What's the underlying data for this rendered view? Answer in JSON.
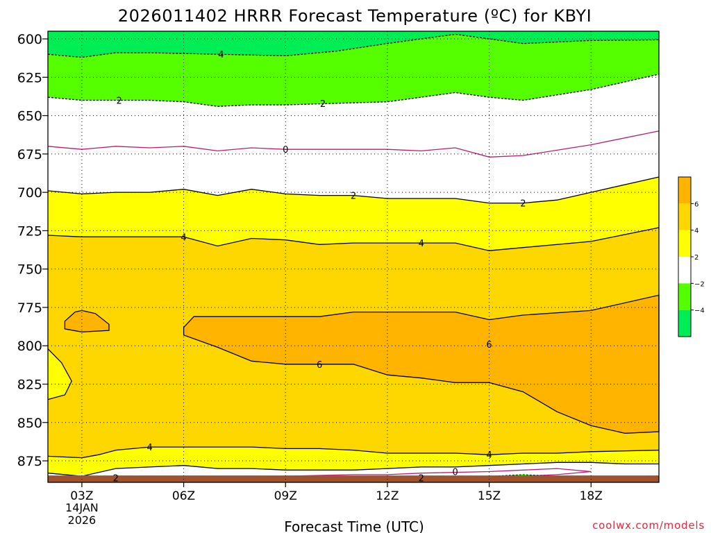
{
  "chart_data": {
    "type": "heatmap",
    "title": "2026011402 HRRR Forecast Temperature (ºC) for KBYI",
    "xlabel": "Forecast Time (UTC)",
    "ylabel": "",
    "credit": "coolwx.com/models",
    "x_ticks": [
      {
        "hour": 3,
        "label": "03Z",
        "sublabel1": "14JAN",
        "sublabel2": "2026"
      },
      {
        "hour": 6,
        "label": "06Z"
      },
      {
        "hour": 9,
        "label": "09Z"
      },
      {
        "hour": 12,
        "label": "12Z"
      },
      {
        "hour": 15,
        "label": "15Z"
      },
      {
        "hour": 18,
        "label": "18Z"
      }
    ],
    "xlim": [
      2,
      20
    ],
    "y_ticks": [
      600,
      625,
      650,
      675,
      700,
      725,
      750,
      775,
      800,
      825,
      850,
      875
    ],
    "ylim": [
      595,
      889
    ],
    "grid": true,
    "colorbar": {
      "bins": [
        {
          "min": 6,
          "max": 8,
          "color": "#ffb400"
        },
        {
          "min": 4,
          "max": 6,
          "color": "#ffd700"
        },
        {
          "min": 2,
          "max": 4,
          "color": "#ffff00"
        },
        {
          "min": -2,
          "max": 2,
          "color": "#ffffff"
        },
        {
          "min": -4,
          "max": -2,
          "color": "#55ff00"
        },
        {
          "min": -6,
          "max": -4,
          "color": "#00ee55"
        }
      ],
      "labels": [
        "6",
        "4",
        "2",
        "−2",
        "−4"
      ]
    },
    "terrain_color": "#a0522d",
    "band_boundaries": [
      {
        "name": "top_green",
        "pts": [
          [
            2,
            595
          ],
          [
            20,
            595
          ],
          [
            20,
            600.6
          ],
          [
            18,
            601
          ],
          [
            16,
            603
          ],
          [
            14,
            597
          ],
          [
            12,
            603
          ],
          [
            10.5,
            608
          ],
          [
            9,
            611
          ],
          [
            7,
            610
          ],
          [
            5,
            609
          ],
          [
            4,
            609
          ],
          [
            3,
            612
          ],
          [
            2,
            610
          ]
        ]
      },
      {
        "name": "m4",
        "pts": [
          [
            2,
            610
          ],
          [
            3,
            612
          ],
          [
            4,
            609
          ],
          [
            5,
            609
          ],
          [
            7,
            610
          ],
          [
            9,
            611
          ],
          [
            10.5,
            608
          ],
          [
            12,
            603
          ],
          [
            14,
            597
          ],
          [
            16,
            603
          ],
          [
            18,
            601
          ],
          [
            20,
            600.6
          ]
        ]
      },
      {
        "name": "m2",
        "pts": [
          [
            2,
            638
          ],
          [
            3,
            640
          ],
          [
            4,
            640
          ],
          [
            5,
            640
          ],
          [
            6,
            641
          ],
          [
            7,
            644
          ],
          [
            8,
            643
          ],
          [
            9,
            643
          ],
          [
            10.5,
            642
          ],
          [
            12,
            641
          ],
          [
            14,
            635
          ],
          [
            15,
            638
          ],
          [
            16,
            640
          ],
          [
            18,
            633
          ],
          [
            20,
            623
          ]
        ]
      },
      {
        "name": "z0",
        "pts": [
          [
            2,
            670
          ],
          [
            3,
            672
          ],
          [
            4,
            670
          ],
          [
            5,
            671
          ],
          [
            6,
            670
          ],
          [
            7,
            673
          ],
          [
            8,
            671
          ],
          [
            9,
            672
          ],
          [
            10,
            672
          ],
          [
            11,
            672
          ],
          [
            12,
            672
          ],
          [
            13,
            673
          ],
          [
            14,
            671
          ],
          [
            15,
            677
          ],
          [
            16,
            676
          ],
          [
            18,
            669
          ],
          [
            20,
            660
          ]
        ]
      },
      {
        "name": "p2",
        "pts": [
          [
            2,
            699
          ],
          [
            3,
            701
          ],
          [
            4,
            700
          ],
          [
            5,
            700
          ],
          [
            6,
            698
          ],
          [
            7,
            702
          ],
          [
            8,
            698
          ],
          [
            9,
            701
          ],
          [
            10,
            702
          ],
          [
            11,
            702
          ],
          [
            12,
            704
          ],
          [
            13,
            704
          ],
          [
            14,
            704
          ],
          [
            15,
            707
          ],
          [
            16,
            707
          ],
          [
            17,
            705
          ],
          [
            18,
            700
          ],
          [
            20,
            690
          ]
        ]
      },
      {
        "name": "p4",
        "pts": [
          [
            2,
            728
          ],
          [
            3,
            729
          ],
          [
            4,
            729
          ],
          [
            5,
            729
          ],
          [
            6,
            729
          ],
          [
            7,
            735
          ],
          [
            8,
            730
          ],
          [
            9,
            731
          ],
          [
            10,
            734
          ],
          [
            11,
            733
          ],
          [
            12,
            733
          ],
          [
            13,
            733
          ],
          [
            14,
            733
          ],
          [
            15,
            738
          ],
          [
            16,
            736
          ],
          [
            18,
            732
          ],
          [
            20,
            723
          ]
        ]
      },
      {
        "name": "p4_low",
        "pts": [
          [
            2,
            872
          ],
          [
            3,
            873
          ],
          [
            3.5,
            871
          ],
          [
            4,
            868
          ],
          [
            5,
            866
          ],
          [
            6,
            866
          ],
          [
            7,
            866
          ],
          [
            8,
            866
          ],
          [
            9,
            867
          ],
          [
            10,
            867
          ],
          [
            11,
            868
          ],
          [
            12,
            870
          ],
          [
            13,
            870
          ],
          [
            14,
            870
          ],
          [
            15,
            871
          ],
          [
            16,
            870
          ],
          [
            17,
            870
          ],
          [
            18,
            869
          ],
          [
            20,
            868
          ]
        ]
      },
      {
        "name": "p2_low",
        "pts": [
          [
            2,
            883
          ],
          [
            3,
            885
          ],
          [
            4,
            880
          ],
          [
            5,
            879
          ],
          [
            6,
            878
          ],
          [
            7,
            880
          ],
          [
            8,
            880
          ],
          [
            9,
            881
          ],
          [
            10,
            881
          ],
          [
            11,
            881
          ],
          [
            12,
            880
          ],
          [
            13,
            879
          ],
          [
            14,
            879
          ],
          [
            15,
            878
          ],
          [
            16,
            877
          ],
          [
            17,
            876
          ],
          [
            18,
            876
          ],
          [
            19,
            877
          ],
          [
            20,
            877
          ]
        ]
      }
    ],
    "warm_core": [
      [
        6,
        788
      ],
      [
        6.3,
        781
      ],
      [
        8,
        781
      ],
      [
        10,
        781
      ],
      [
        11,
        778
      ],
      [
        12,
        778
      ],
      [
        14,
        778
      ],
      [
        15,
        783
      ],
      [
        16,
        780
      ],
      [
        18,
        777
      ],
      [
        20,
        767
      ],
      [
        20,
        856
      ],
      [
        19,
        857
      ],
      [
        18,
        852
      ],
      [
        17,
        843
      ],
      [
        16,
        830
      ],
      [
        15,
        824
      ],
      [
        14,
        824
      ],
      [
        13,
        821
      ],
      [
        12,
        819
      ],
      [
        11,
        812
      ],
      [
        10,
        812
      ],
      [
        9,
        812
      ],
      [
        8,
        810
      ],
      [
        7,
        801
      ],
      [
        6,
        793
      ]
    ],
    "warm_blob": [
      [
        2.5,
        784
      ],
      [
        2.8,
        778
      ],
      [
        3,
        777
      ],
      [
        3.4,
        779
      ],
      [
        3.8,
        786
      ],
      [
        3.8,
        790
      ],
      [
        3,
        791
      ],
      [
        2.5,
        789
      ]
    ],
    "lobe_2_4": [
      [
        2,
        802
      ],
      [
        2.4,
        811
      ],
      [
        2.7,
        823
      ],
      [
        2.5,
        832
      ],
      [
        2,
        835
      ]
    ],
    "zero_low": [
      [
        6.5,
        886
      ],
      [
        9,
        885
      ],
      [
        11,
        884
      ],
      [
        12,
        884
      ],
      [
        13,
        883
      ],
      [
        15,
        882
      ],
      [
        16,
        881
      ],
      [
        17,
        880
      ],
      [
        18,
        882
      ],
      [
        17,
        884
      ],
      [
        16,
        885
      ],
      [
        15,
        886
      ],
      [
        13,
        886
      ],
      [
        12,
        886
      ],
      [
        9,
        886
      ]
    ],
    "neg2_strip": [
      [
        12,
        887
      ],
      [
        14,
        886
      ],
      [
        15,
        885
      ],
      [
        16,
        884
      ],
      [
        17,
        885
      ],
      [
        16.5,
        887
      ],
      [
        15,
        887.5
      ],
      [
        13,
        887.5
      ]
    ],
    "neg2_strip2": [
      [
        14,
        887
      ],
      [
        15,
        886
      ],
      [
        16.5,
        886
      ],
      [
        17,
        887
      ],
      [
        16,
        888
      ],
      [
        15,
        888
      ]
    ],
    "white_pockets": [
      [
        [
          2,
          884
        ],
        [
          3.5,
          884
        ],
        [
          4.2,
          882
        ],
        [
          4,
          888
        ],
        [
          2,
          888
        ]
      ],
      [
        [
          18,
          881
        ],
        [
          19,
          880
        ],
        [
          19.8,
          882
        ],
        [
          19.5,
          888
        ],
        [
          18.2,
          888
        ]
      ]
    ],
    "terrain": [
      [
        2,
        884.5
      ],
      [
        20,
        884.5
      ],
      [
        20,
        889
      ],
      [
        2,
        889
      ]
    ],
    "contour_labels": [
      {
        "text": "4",
        "x": 7.1,
        "y": 610
      },
      {
        "text": "2",
        "x": 4.1,
        "y": 640
      },
      {
        "text": "2",
        "x": 10.1,
        "y": 642
      },
      {
        "text": "0",
        "x": 9.0,
        "y": 672
      },
      {
        "text": "2",
        "x": 11.0,
        "y": 702
      },
      {
        "text": "2",
        "x": 16.0,
        "y": 707
      },
      {
        "text": "4",
        "x": 6.0,
        "y": 729
      },
      {
        "text": "4",
        "x": 13.0,
        "y": 733
      },
      {
        "text": "6",
        "x": 10.0,
        "y": 812
      },
      {
        "text": "6",
        "x": 15.0,
        "y": 799
      },
      {
        "text": "4",
        "x": 5.0,
        "y": 866
      },
      {
        "text": "4",
        "x": 15.0,
        "y": 871
      },
      {
        "text": "0",
        "x": 14.0,
        "y": 882
      },
      {
        "text": "2",
        "x": 4.0,
        "y": 886
      },
      {
        "text": "2",
        "x": 13.0,
        "y": 886
      }
    ]
  }
}
